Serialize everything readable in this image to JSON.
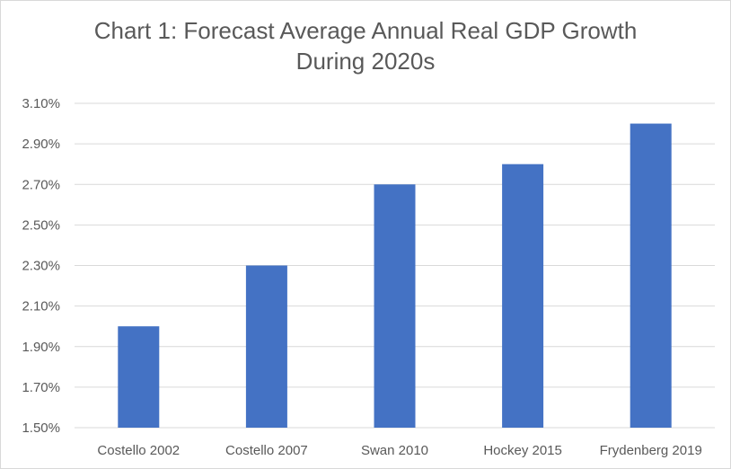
{
  "chart_data": {
    "type": "bar",
    "title_lines": [
      "Chart 1: Forecast Average Annual Real GDP Growth",
      "During 2020s"
    ],
    "categories": [
      "Costello 2002",
      "Costello 2007",
      "Swan 2010",
      "Hockey 2015",
      "Frydenberg 2019"
    ],
    "values": [
      2.0,
      2.3,
      2.7,
      2.8,
      3.0
    ],
    "y_ticks": [
      "1.50%",
      "1.70%",
      "1.90%",
      "2.10%",
      "2.30%",
      "2.50%",
      "2.70%",
      "2.90%",
      "3.10%"
    ],
    "ylim": [
      1.5,
      3.1
    ],
    "y_unit": "%",
    "grid": true,
    "bar_color": "#4472c4",
    "grid_color": "#d9d9d9"
  }
}
